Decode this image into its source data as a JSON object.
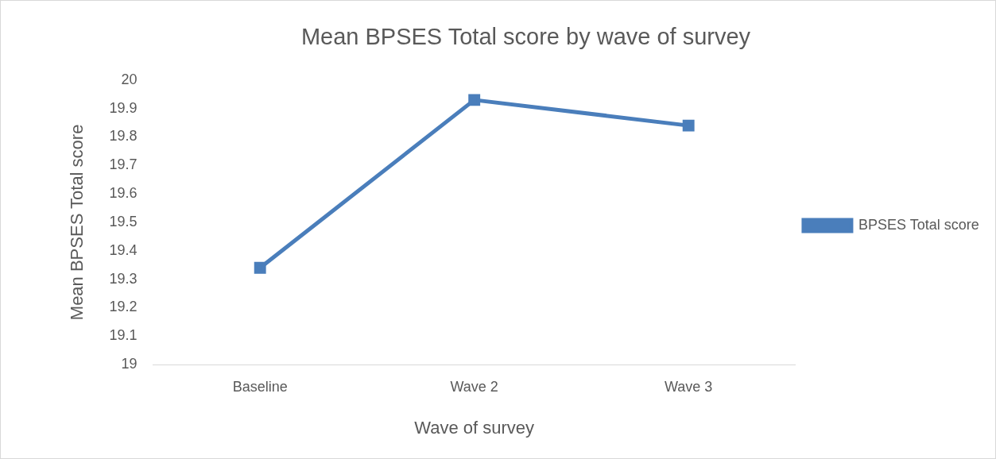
{
  "chart_data": {
    "type": "line",
    "title": "Mean BPSES Total score by wave of survey",
    "xlabel": "Wave of survey",
    "ylabel": "Mean BPSES Total score",
    "categories": [
      "Baseline",
      "Wave 2",
      "Wave 3"
    ],
    "series": [
      {
        "name": "BPSES Total score",
        "color": "#4a7ebb",
        "values": [
          19.34,
          19.93,
          19.84
        ]
      }
    ],
    "ylim": [
      19,
      20
    ],
    "yticks": [
      19,
      19.1,
      19.2,
      19.3,
      19.4,
      19.5,
      19.6,
      19.7,
      19.8,
      19.9,
      20
    ],
    "grid": false,
    "legend": "right",
    "marker": "square",
    "line_style": "solid"
  }
}
